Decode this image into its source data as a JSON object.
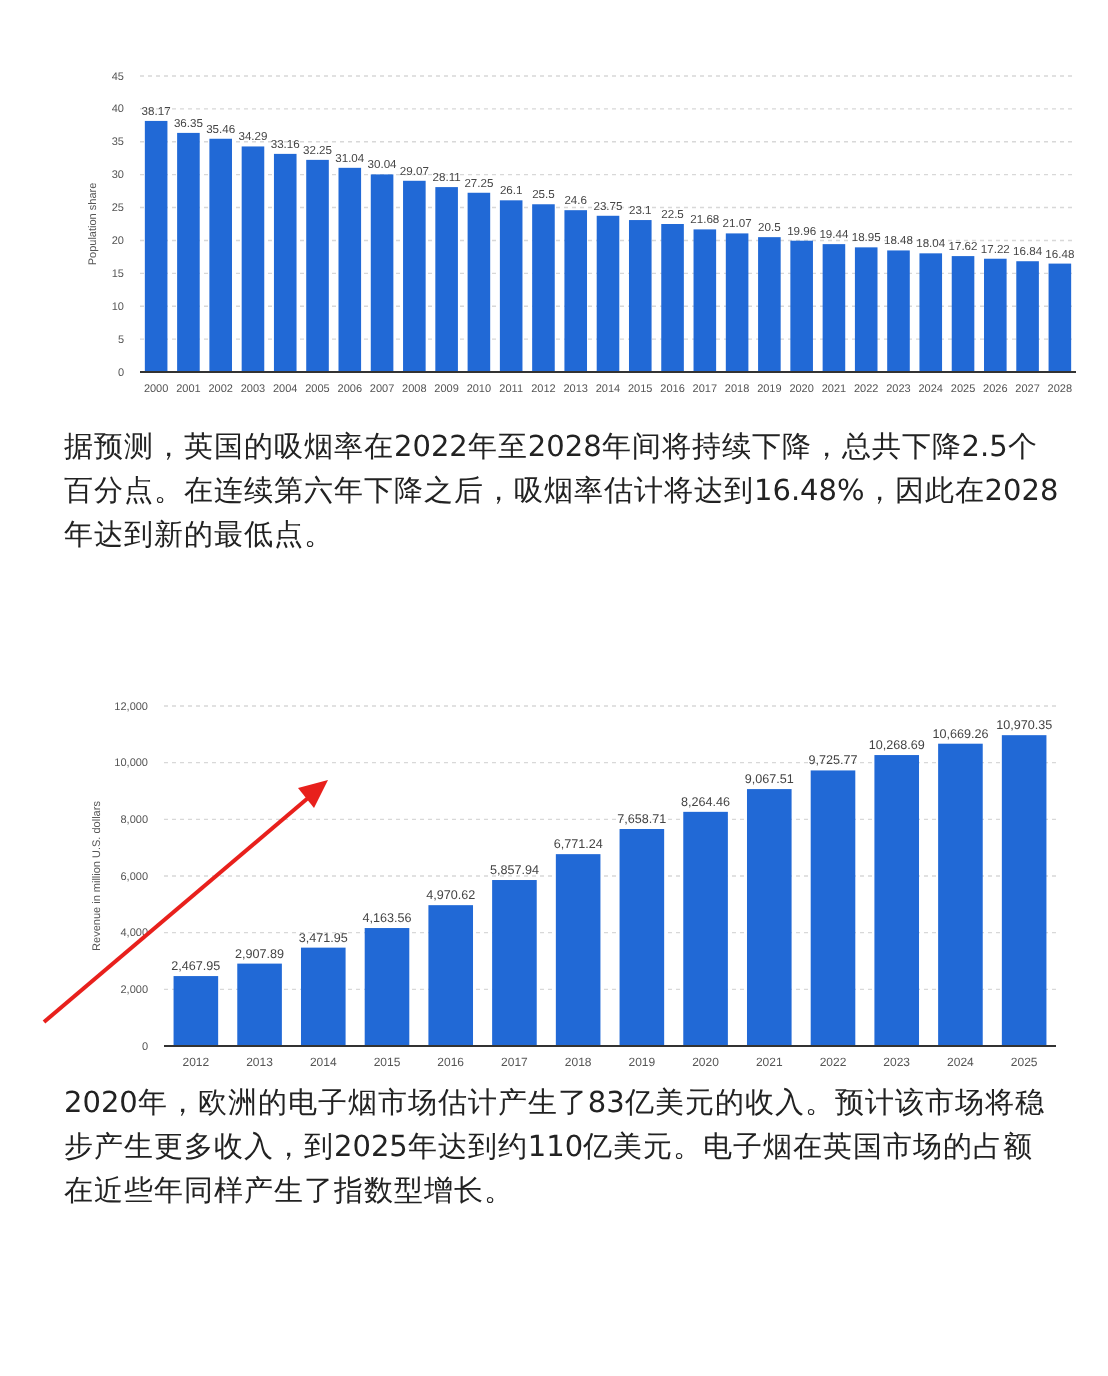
{
  "chart_data": [
    {
      "type": "bar",
      "ylabel": "Population share",
      "categories": [
        "2000",
        "2001",
        "2002",
        "2003",
        "2004",
        "2005",
        "2006",
        "2007",
        "2008",
        "2009",
        "2010",
        "2011",
        "2012",
        "2013",
        "2014",
        "2015",
        "2016",
        "2017",
        "2018",
        "2019",
        "2020",
        "2021",
        "2022",
        "2023",
        "2024",
        "2025",
        "2026",
        "2027",
        "2028"
      ],
      "values": [
        38.17,
        36.35,
        35.46,
        34.29,
        33.16,
        32.25,
        31.04,
        30.04,
        29.07,
        28.11,
        27.25,
        26.1,
        25.5,
        24.6,
        23.75,
        23.1,
        22.5,
        21.68,
        21.07,
        20.5,
        19.96,
        19.44,
        18.95,
        18.48,
        18.04,
        17.62,
        17.22,
        16.84,
        16.48
      ],
      "color": "#2169d6",
      "ylim": [
        0,
        45
      ],
      "yticks": [
        0,
        5,
        10,
        15,
        20,
        25,
        30,
        35,
        40,
        45
      ],
      "grid": "y",
      "data_labels": true,
      "annotations": [
        "据预测，英国的吸烟率在2022年至2028年间将持续下降，总共下降2.5个百分点。在连续第六年下降之后，吸烟率估计将达到16.48%，因此在2028年达到新的最低点。"
      ]
    },
    {
      "type": "bar",
      "ylabel": "Revenue in million U.S. dollars",
      "categories": [
        "2012",
        "2013",
        "2014",
        "2015",
        "2016",
        "2017",
        "2018",
        "2019",
        "2020",
        "2021",
        "2022",
        "2023",
        "2024",
        "2025"
      ],
      "values": [
        2467.95,
        2907.89,
        3471.95,
        4163.56,
        4970.62,
        5857.94,
        6771.24,
        7658.71,
        8264.46,
        9067.51,
        9725.77,
        10268.69,
        10669.26,
        10970.35
      ],
      "value_labels": [
        "2,467.95",
        "2,907.89",
        "3,471.95",
        "4,163.56",
        "4,970.62",
        "5,857.94",
        "6,771.24",
        "7,658.71",
        "8,264.46",
        "9,067.51",
        "9,725.77",
        "10,268.69",
        "10,669.26",
        "10,970.35"
      ],
      "color": "#2169d6",
      "ylim": [
        0,
        12000
      ],
      "yticks": [
        {
          "value": 0,
          "label": "0"
        },
        {
          "value": 2000,
          "label": "2,000"
        },
        {
          "value": 4000,
          "label": "4,000"
        },
        {
          "value": 6000,
          "label": "6,000"
        },
        {
          "value": 8000,
          "label": "8,000"
        },
        {
          "value": 10000,
          "label": "10,000"
        },
        {
          "value": 12000,
          "label": "12,000"
        }
      ],
      "grid": "y",
      "annotations": [
        "2020年，欧洲的电子烟市场估计产生了83亿美元的收入。预计该市场将稳步产生更多收入，到2025年达到约110亿美元。电子烟在英国市场的占额在近些年同样产生了指数型增长。"
      ]
    }
  ]
}
